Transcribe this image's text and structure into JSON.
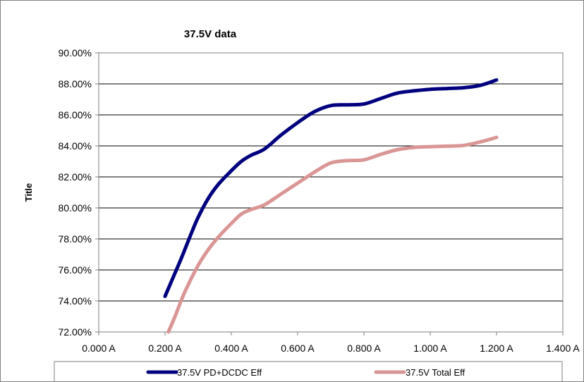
{
  "chart_data": {
    "type": "line",
    "title": "37.5V data",
    "xlabel": "",
    "ylabel": "Title",
    "xlim": [
      0,
      1.4
    ],
    "ylim": [
      0.72,
      0.9
    ],
    "x_ticks": [
      0,
      0.2,
      0.4,
      0.6,
      0.8,
      1.0,
      1.2,
      1.4
    ],
    "x_tick_labels": [
      "0.000 A",
      "0.200 A",
      "0.400 A",
      "0.600 A",
      "0.800 A",
      "1.000 A",
      "1.200 A",
      "1.400 A"
    ],
    "y_ticks": [
      0.72,
      0.74,
      0.76,
      0.78,
      0.8,
      0.82,
      0.84,
      0.86,
      0.88,
      0.9
    ],
    "y_tick_labels": [
      "72.00%",
      "74.00%",
      "76.00%",
      "78.00%",
      "80.00%",
      "82.00%",
      "84.00%",
      "86.00%",
      "88.00%",
      "90.00%"
    ],
    "grid": "horizontal",
    "legend_position": "bottom",
    "series": [
      {
        "name": "37.5V PD+DCDC Eff",
        "color": "#00007f",
        "x": [
          0.2,
          0.22,
          0.25,
          0.28,
          0.3,
          0.33,
          0.36,
          0.4,
          0.43,
          0.46,
          0.5,
          0.55,
          0.6,
          0.65,
          0.7,
          0.75,
          0.8,
          0.85,
          0.9,
          0.95,
          1.0,
          1.05,
          1.1,
          1.15,
          1.2
        ],
        "y": [
          0.743,
          0.753,
          0.768,
          0.784,
          0.794,
          0.806,
          0.815,
          0.824,
          0.83,
          0.834,
          0.838,
          0.847,
          0.855,
          0.862,
          0.866,
          0.8665,
          0.867,
          0.8705,
          0.874,
          0.8755,
          0.8765,
          0.877,
          0.8775,
          0.879,
          0.8825
        ]
      },
      {
        "name": "37.5V Total Eff",
        "color": "#d99694",
        "x": [
          0.21,
          0.23,
          0.26,
          0.3,
          0.33,
          0.36,
          0.4,
          0.43,
          0.46,
          0.5,
          0.55,
          0.6,
          0.65,
          0.7,
          0.75,
          0.8,
          0.85,
          0.9,
          0.95,
          1.0,
          1.05,
          1.1,
          1.15,
          1.2
        ],
        "y": [
          0.72,
          0.73,
          0.746,
          0.763,
          0.773,
          0.781,
          0.79,
          0.796,
          0.799,
          0.802,
          0.809,
          0.816,
          0.823,
          0.829,
          0.8305,
          0.831,
          0.8345,
          0.8375,
          0.839,
          0.8395,
          0.8398,
          0.8403,
          0.8425,
          0.8455
        ]
      }
    ]
  }
}
